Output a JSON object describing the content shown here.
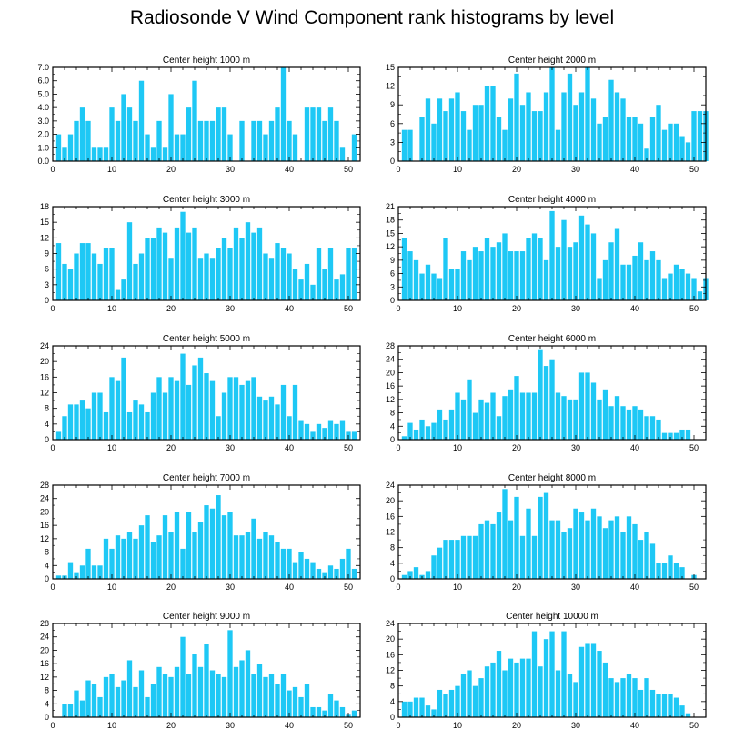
{
  "title": "Radiosonde V Wind Component rank histograms by level",
  "colors": {
    "bar": "#1ec8f5",
    "axis": "#000000",
    "background": "#ffffff"
  },
  "chart_data": [
    {
      "type": "bar",
      "title": "Center height 1000 m",
      "xlim": [
        0,
        52
      ],
      "ylim": [
        0,
        7
      ],
      "x_ticks": [
        0,
        10,
        20,
        30,
        40,
        50
      ],
      "y_ticks": [
        "0.0",
        "1.0",
        "2.0",
        "3.0",
        "4.0",
        "5.0",
        "6.0",
        "7.0"
      ],
      "values": [
        2,
        1,
        2,
        3,
        4,
        3,
        1,
        1,
        1,
        4,
        3,
        5,
        4,
        3,
        6,
        2,
        1,
        3,
        1,
        5,
        2,
        2,
        4,
        6,
        3,
        3,
        3,
        4,
        4,
        2,
        0,
        3,
        0,
        3,
        3,
        2,
        3,
        4,
        7,
        3,
        2,
        0,
        4,
        4,
        4,
        3,
        4,
        3,
        1,
        0,
        2
      ]
    },
    {
      "type": "bar",
      "title": "Center height 2000 m",
      "xlim": [
        0,
        52
      ],
      "ylim": [
        0,
        15
      ],
      "x_ticks": [
        0,
        10,
        20,
        30,
        40,
        50
      ],
      "y_ticks": [
        "0",
        "3",
        "6",
        "9",
        "12",
        "15"
      ],
      "values": [
        5,
        5,
        0,
        7,
        10,
        6,
        10,
        8,
        10,
        11,
        8,
        5,
        9,
        9,
        12,
        12,
        7,
        5,
        10,
        14,
        9,
        11,
        8,
        8,
        11,
        15,
        5,
        11,
        14,
        9,
        11,
        15,
        10,
        6,
        7,
        13,
        11,
        10,
        7,
        7,
        6,
        2,
        7,
        9,
        5,
        6,
        6,
        4,
        3,
        8,
        8,
        8
      ]
    },
    {
      "type": "bar",
      "title": "Center height 3000 m",
      "xlim": [
        0,
        52
      ],
      "ylim": [
        0,
        18
      ],
      "x_ticks": [
        0,
        10,
        20,
        30,
        40,
        50
      ],
      "y_ticks": [
        "0",
        "3",
        "6",
        "9",
        "12",
        "15",
        "18"
      ],
      "values": [
        11,
        7,
        6,
        9,
        11,
        11,
        9,
        7,
        10,
        10,
        2,
        4,
        15,
        7,
        9,
        12,
        12,
        14,
        13,
        8,
        14,
        17,
        13,
        14,
        8,
        9,
        8,
        10,
        12,
        10,
        14,
        12,
        15,
        13,
        14,
        9,
        8,
        11,
        10,
        9,
        6,
        4,
        7,
        3,
        10,
        6,
        10,
        4,
        5,
        10,
        10
      ]
    },
    {
      "type": "bar",
      "title": "Center height 4000 m",
      "xlim": [
        0,
        52
      ],
      "ylim": [
        0,
        21
      ],
      "x_ticks": [
        0,
        10,
        20,
        30,
        40,
        50
      ],
      "y_ticks": [
        "0",
        "3",
        "6",
        "9",
        "12",
        "15",
        "18",
        "21"
      ],
      "values": [
        14,
        11,
        9,
        6,
        8,
        6,
        5,
        14,
        7,
        7,
        11,
        9,
        12,
        11,
        14,
        12,
        13,
        15,
        11,
        11,
        11,
        14,
        15,
        14,
        9,
        20,
        12,
        18,
        12,
        13,
        19,
        17,
        15,
        5,
        9,
        13,
        16,
        8,
        8,
        10,
        13,
        9,
        11,
        9,
        5,
        6,
        8,
        7,
        6,
        5,
        2,
        5
      ]
    },
    {
      "type": "bar",
      "title": "Center height 5000 m",
      "xlim": [
        0,
        52
      ],
      "ylim": [
        0,
        24
      ],
      "x_ticks": [
        0,
        10,
        20,
        30,
        40,
        50
      ],
      "y_ticks": [
        "0",
        "4",
        "8",
        "12",
        "16",
        "20",
        "24"
      ],
      "values": [
        2,
        6,
        9,
        9,
        10,
        8,
        12,
        12,
        7,
        16,
        15,
        21,
        7,
        10,
        9,
        7,
        12,
        16,
        12,
        16,
        15,
        22,
        14,
        19,
        21,
        17,
        15,
        6,
        12,
        16,
        16,
        14,
        15,
        16,
        11,
        10,
        11,
        9,
        14,
        6,
        14,
        5,
        4,
        2,
        4,
        3,
        5,
        4,
        5,
        2,
        2
      ]
    },
    {
      "type": "bar",
      "title": "Center height 6000 m",
      "xlim": [
        0,
        52
      ],
      "ylim": [
        0,
        28
      ],
      "x_ticks": [
        0,
        10,
        20,
        30,
        40,
        50
      ],
      "y_ticks": [
        "0",
        "4",
        "8",
        "12",
        "16",
        "20",
        "24",
        "28"
      ],
      "values": [
        1,
        5,
        3,
        6,
        4,
        5,
        9,
        6,
        9,
        14,
        12,
        18,
        8,
        12,
        11,
        14,
        7,
        13,
        15,
        19,
        14,
        14,
        14,
        27,
        22,
        24,
        14,
        13,
        12,
        12,
        20,
        20,
        17,
        12,
        15,
        10,
        13,
        10,
        9,
        10,
        9,
        7,
        7,
        6,
        2,
        2,
        2,
        3,
        3
      ]
    },
    {
      "type": "bar",
      "title": "Center height 7000 m",
      "xlim": [
        0,
        52
      ],
      "ylim": [
        0,
        28
      ],
      "x_ticks": [
        0,
        10,
        20,
        30,
        40,
        50
      ],
      "y_ticks": [
        "0",
        "4",
        "8",
        "12",
        "16",
        "20",
        "24",
        "28"
      ],
      "values": [
        1,
        1,
        5,
        2,
        4,
        9,
        4,
        4,
        12,
        9,
        13,
        12,
        14,
        12,
        16,
        19,
        11,
        13,
        19,
        14,
        20,
        9,
        20,
        14,
        17,
        22,
        21,
        25,
        19,
        20,
        13,
        13,
        14,
        18,
        12,
        14,
        13,
        11,
        9,
        9,
        5,
        8,
        6,
        5,
        3,
        2,
        4,
        3,
        6,
        9,
        3
      ]
    },
    {
      "type": "bar",
      "title": "Center height 8000 m",
      "xlim": [
        0,
        52
      ],
      "ylim": [
        0,
        24
      ],
      "x_ticks": [
        0,
        10,
        20,
        30,
        40,
        50
      ],
      "y_ticks": [
        "0",
        "4",
        "8",
        "12",
        "16",
        "20",
        "24"
      ],
      "values": [
        1,
        2,
        3,
        1,
        2,
        6,
        8,
        10,
        10,
        10,
        11,
        11,
        11,
        14,
        15,
        14,
        17,
        23,
        15,
        21,
        11,
        18,
        11,
        21,
        22,
        15,
        15,
        12,
        13,
        18,
        17,
        15,
        18,
        16,
        13,
        15,
        16,
        12,
        16,
        14,
        10,
        12,
        9,
        4,
        4,
        6,
        4,
        3,
        0,
        1
      ]
    },
    {
      "type": "bar",
      "title": "Center height 9000 m",
      "xlim": [
        0,
        52
      ],
      "ylim": [
        0,
        28
      ],
      "x_ticks": [
        0,
        10,
        20,
        30,
        40,
        50
      ],
      "y_ticks": [
        "0",
        "4",
        "8",
        "12",
        "16",
        "20",
        "24",
        "28"
      ],
      "values": [
        0,
        4,
        4,
        8,
        5,
        11,
        10,
        6,
        12,
        13,
        9,
        11,
        17,
        9,
        14,
        6,
        10,
        15,
        13,
        12,
        15,
        24,
        13,
        19,
        15,
        22,
        14,
        13,
        12,
        26,
        15,
        17,
        20,
        13,
        16,
        12,
        13,
        10,
        13,
        8,
        9,
        6,
        10,
        3,
        3,
        2,
        7,
        5,
        3,
        1,
        2
      ]
    },
    {
      "type": "bar",
      "title": "Center height 10000 m",
      "xlim": [
        0,
        52
      ],
      "ylim": [
        0,
        24
      ],
      "x_ticks": [
        0,
        10,
        20,
        30,
        40,
        50
      ],
      "y_ticks": [
        "0",
        "4",
        "8",
        "12",
        "16",
        "20",
        "24"
      ],
      "values": [
        4,
        4,
        5,
        5,
        3,
        2,
        7,
        6,
        7,
        8,
        11,
        12,
        8,
        10,
        13,
        14,
        17,
        12,
        15,
        14,
        15,
        15,
        22,
        13,
        20,
        22,
        12,
        22,
        11,
        9,
        18,
        19,
        19,
        17,
        14,
        10,
        9,
        10,
        11,
        10,
        7,
        10,
        7,
        6,
        6,
        6,
        5,
        3,
        1
      ]
    }
  ]
}
